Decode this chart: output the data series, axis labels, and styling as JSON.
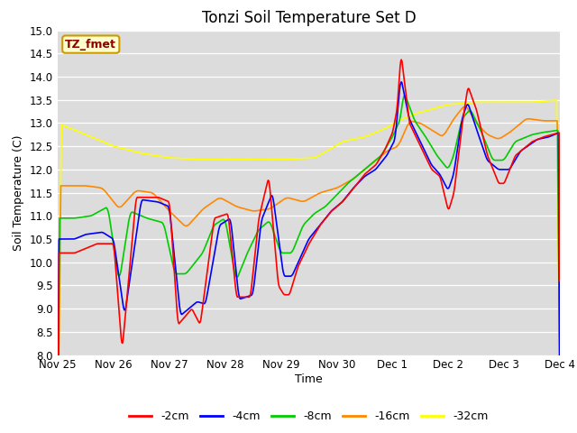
{
  "title": "Tonzi Soil Temperature Set D",
  "xlabel": "Time",
  "ylabel": "Soil Temperature (C)",
  "ylim": [
    8.0,
    15.0
  ],
  "yticks": [
    8.0,
    8.5,
    9.0,
    9.5,
    10.0,
    10.5,
    11.0,
    11.5,
    12.0,
    12.5,
    13.0,
    13.5,
    14.0,
    14.5,
    15.0
  ],
  "x_tick_labels": [
    "Nov 25",
    "Nov 26",
    "Nov 27",
    "Nov 28",
    "Nov 29",
    "Nov 30",
    "Dec 1",
    "Dec 2",
    "Dec 3",
    "Dec 4"
  ],
  "legend_label": "TZ_fmet",
  "legend_bg": "#ffffcc",
  "legend_border": "#cc9900",
  "plot_bg": "#dcdcdc",
  "fig_bg": "#ffffff",
  "series": {
    "-2cm": {
      "color": "#ff0000",
      "lw": 1.2
    },
    "-4cm": {
      "color": "#0000ff",
      "lw": 1.2
    },
    "-8cm": {
      "color": "#00cc00",
      "lw": 1.2
    },
    "-16cm": {
      "color": "#ff8800",
      "lw": 1.2
    },
    "-32cm": {
      "color": "#ffff00",
      "lw": 1.2
    }
  },
  "title_fontsize": 12,
  "axis_label_fontsize": 9,
  "tick_fontsize": 8.5
}
